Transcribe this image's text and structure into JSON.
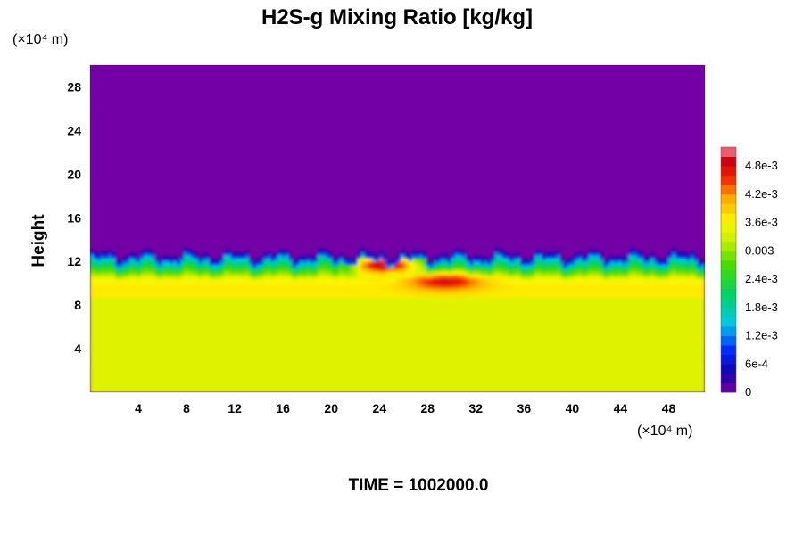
{
  "chart_data": {
    "type": "heatmap",
    "title": "H2S-g Mixing Ratio [kg/kg]",
    "ylabel": "Height",
    "xlabel": "",
    "x_unit": "(×10⁴ m)",
    "y_unit": "(×10⁴ m)",
    "xlim": [
      0,
      51
    ],
    "ylim": [
      0,
      30
    ],
    "x_ticks": [
      "4",
      "8",
      "12",
      "16",
      "20",
      "24",
      "28",
      "32",
      "36",
      "40",
      "44",
      "48"
    ],
    "y_ticks": [
      "4",
      "8",
      "12",
      "16",
      "20",
      "24",
      "28"
    ],
    "colorbar": {
      "range": [
        0,
        0.0052
      ],
      "tick_values": [
        0,
        0.0006,
        0.0012,
        0.0018,
        0.0024,
        0.003,
        0.0036,
        0.0042,
        0.0048
      ],
      "tick_labels": [
        "0",
        "6e-4",
        "1.2e-3",
        "1.8e-3",
        "2.4e-3",
        "0.003",
        "3.6e-3",
        "4.2e-3",
        "4.8e-3"
      ]
    },
    "field_summary": {
      "surface_layer_value": 0.0034,
      "upper_layer_value": 0,
      "transition_height": 12,
      "peak_value": 0.0051,
      "peak_location": [
        24.5,
        11.7
      ]
    },
    "footer": "TIME = 1002000.0"
  }
}
